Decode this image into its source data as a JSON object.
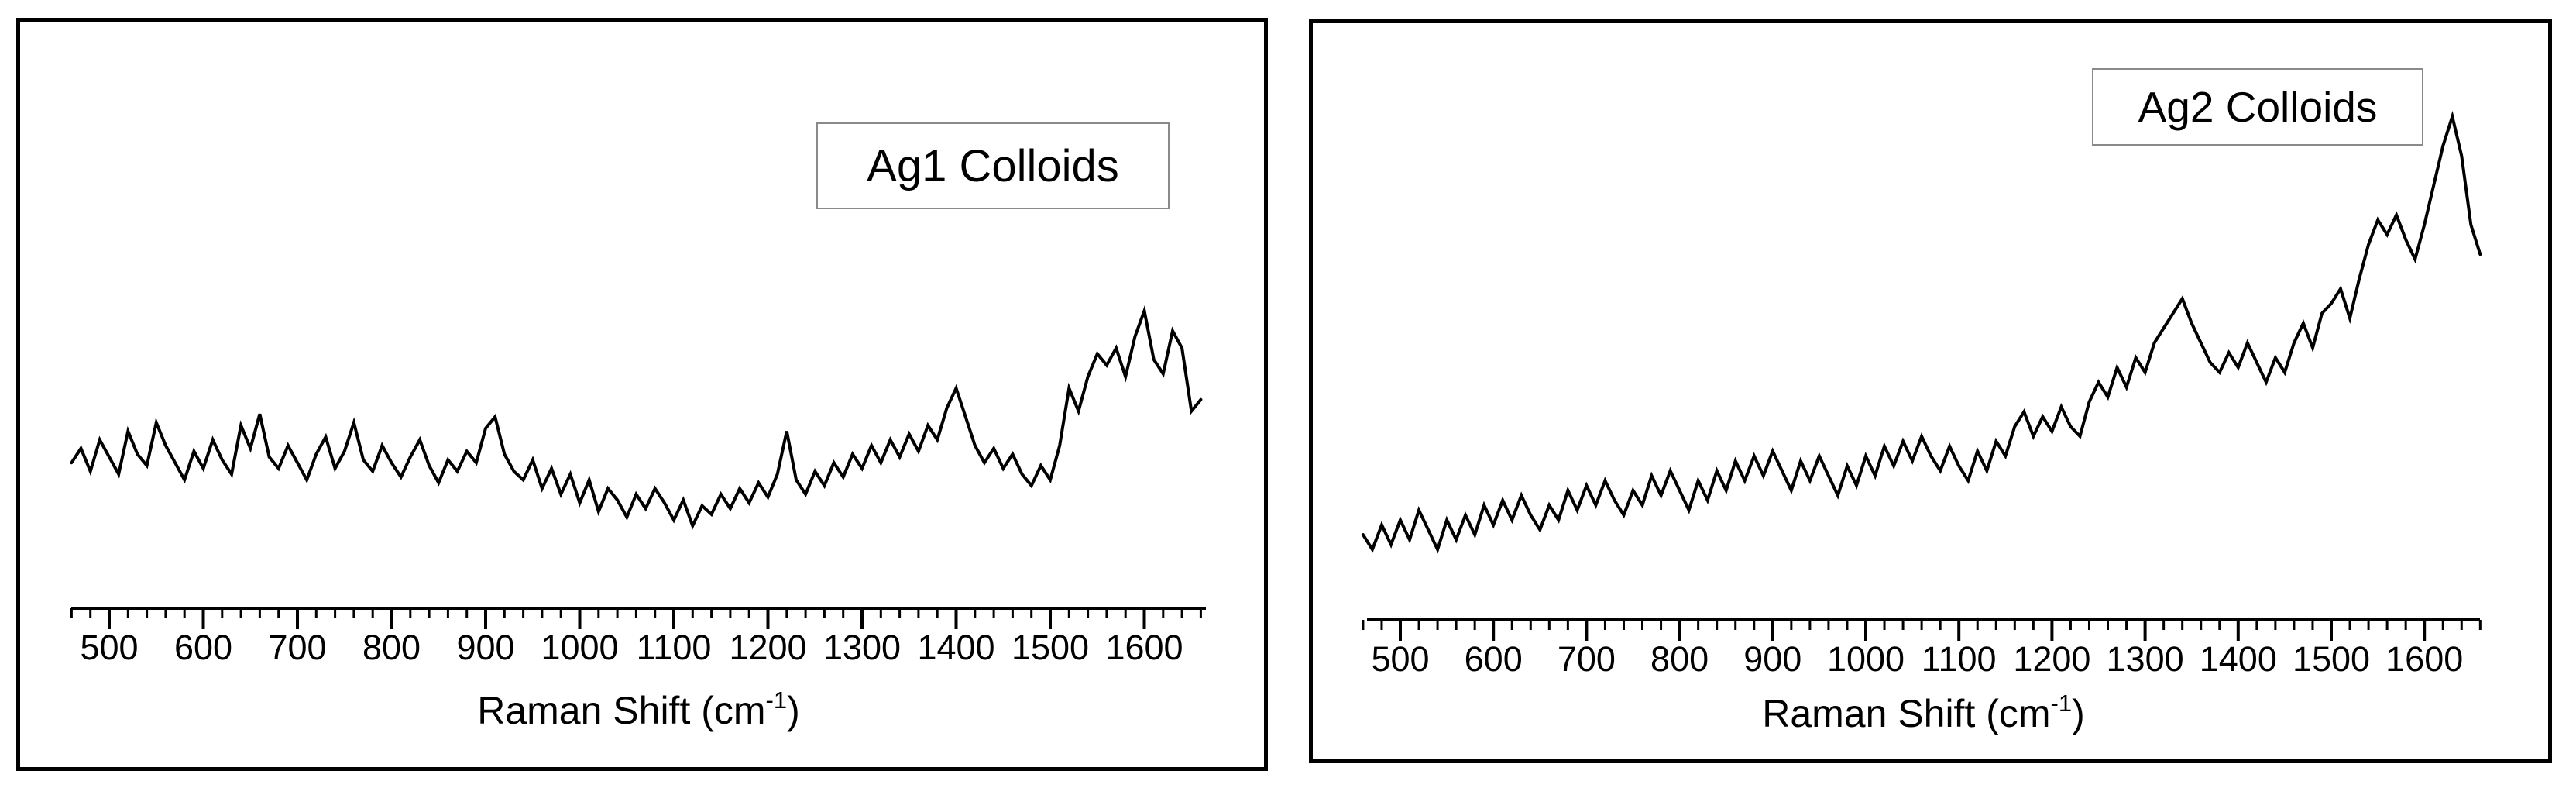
{
  "page": {
    "background": "#ffffff",
    "text_color": "#000000",
    "spectrum_color": "#000000",
    "legend_border_color": "#8a8a8a"
  },
  "xlabel": {
    "prefix": "Raman Shift (cm",
    "sup": "-1",
    "suffix": ")"
  },
  "chart_data": [
    {
      "type": "line",
      "title": "Ag1 Colloids",
      "xlabel": "Raman Shift (cm^-1)",
      "ylabel": "",
      "y_axis_visible": false,
      "grid": false,
      "legend_position": "upper right (inset box)",
      "xlim": [
        460,
        1665
      ],
      "x_ticks": [
        500,
        600,
        700,
        800,
        900,
        1000,
        1100,
        1200,
        1300,
        1400,
        1500,
        1600
      ],
      "minor_tick_step": 20,
      "x_start": 460,
      "x_step": 10,
      "y_units": "intensity (a.u., 0-100 est.)",
      "y": [
        44,
        49,
        41,
        52,
        46,
        40,
        55,
        47,
        43,
        58,
        50,
        44,
        38,
        48,
        42,
        52,
        45,
        40,
        57,
        49,
        61,
        46,
        42,
        50,
        44,
        38,
        47,
        53,
        42,
        48,
        58,
        45,
        41,
        50,
        44,
        39,
        46,
        52,
        43,
        37,
        45,
        41,
        48,
        44,
        56,
        60,
        47,
        41,
        38,
        45,
        35,
        42,
        33,
        40,
        30,
        38,
        27,
        35,
        31,
        25,
        33,
        28,
        35,
        30,
        24,
        31,
        22,
        29,
        26,
        33,
        28,
        35,
        30,
        37,
        32,
        40,
        55,
        38,
        33,
        41,
        36,
        44,
        39,
        47,
        42,
        50,
        44,
        52,
        46,
        54,
        48,
        57,
        52,
        63,
        70,
        60,
        50,
        44,
        49,
        42,
        47,
        40,
        36,
        43,
        38,
        50,
        70,
        62,
        74,
        82,
        78,
        84,
        74,
        88,
        97,
        80,
        75,
        90,
        84,
        62,
        66
      ]
    },
    {
      "type": "line",
      "title": "Ag2 Colloids",
      "xlabel": "Raman Shift (cm^-1)",
      "ylabel": "",
      "y_axis_visible": false,
      "grid": false,
      "legend_position": "upper right (inset box)",
      "xlim": [
        460,
        1665
      ],
      "x_ticks": [
        500,
        600,
        700,
        800,
        900,
        1000,
        1100,
        1200,
        1300,
        1400,
        1500,
        1600
      ],
      "minor_tick_step": 20,
      "x_start": 460,
      "x_step": 10,
      "y_units": "intensity (a.u., 0-100 est.)",
      "y": [
        11,
        8,
        13,
        9,
        14,
        10,
        16,
        12,
        8,
        14,
        10,
        15,
        11,
        17,
        13,
        18,
        14,
        19,
        15,
        12,
        17,
        14,
        20,
        16,
        21,
        17,
        22,
        18,
        15,
        20,
        17,
        23,
        19,
        24,
        20,
        16,
        22,
        18,
        24,
        20,
        26,
        22,
        27,
        23,
        28,
        24,
        20,
        26,
        22,
        27,
        23,
        19,
        25,
        21,
        27,
        23,
        29,
        25,
        30,
        26,
        31,
        27,
        24,
        29,
        25,
        22,
        28,
        24,
        30,
        27,
        33,
        36,
        31,
        35,
        32,
        37,
        33,
        31,
        38,
        42,
        39,
        45,
        41,
        47,
        44,
        50,
        53,
        56,
        59,
        54,
        50,
        46,
        44,
        48,
        45,
        50,
        46,
        42,
        47,
        44,
        50,
        54,
        49,
        56,
        58,
        61,
        55,
        63,
        70,
        75,
        72,
        76,
        71,
        67,
        74,
        82,
        90,
        96,
        88,
        74,
        68
      ]
    }
  ]
}
